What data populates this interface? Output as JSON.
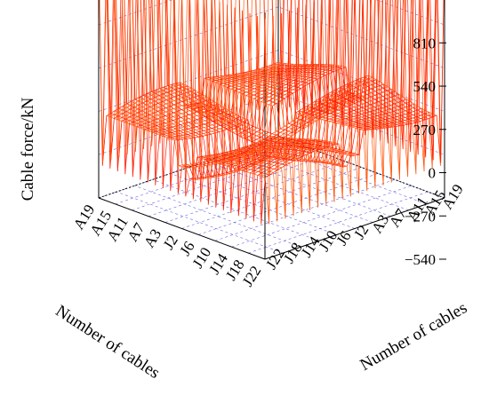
{
  "chart_data": {
    "type": "surface-3d-wireframe",
    "zlabel": "Cable force/kN",
    "xlabel": "Number of cables",
    "ylabel": "Number of cables",
    "zticks": [
      "810",
      "540",
      "270",
      "0",
      "−270",
      "−540"
    ],
    "zlim": [
      -540,
      1000
    ],
    "left_axis_ticks": [
      "A19",
      "A15",
      "A11",
      "A7",
      "A3",
      "J2",
      "J6",
      "J10",
      "J14",
      "J18",
      "J22"
    ],
    "right_axis_ticks": [
      "A19",
      "A15",
      "A11",
      "A7",
      "A3",
      "J2",
      "J6",
      "J10",
      "J14",
      "J18",
      "J22"
    ],
    "grid": true,
    "colors": {
      "low": "#f0a020",
      "high": "#ff1010",
      "grid": "#6b6bdc"
    }
  }
}
